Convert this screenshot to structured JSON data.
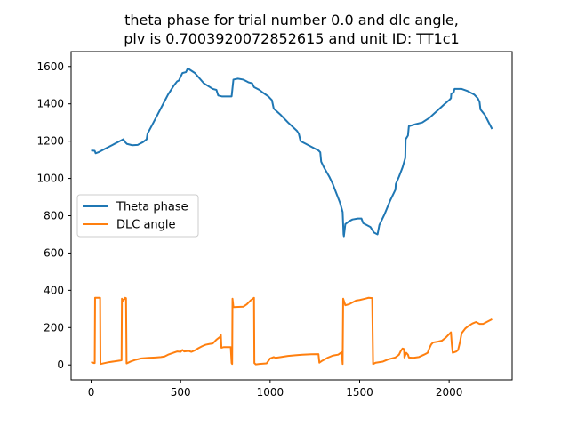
{
  "chart_data": {
    "type": "line",
    "title_lines": [
      "theta phase for trial number 0.0 and dlc angle,",
      "plv is 0.7003920072852615 and unit ID: TT1c1"
    ],
    "xlabel": "",
    "ylabel": "",
    "xlim": [
      -112,
      2352
    ],
    "ylim": [
      -80,
      1680
    ],
    "xticks": [
      0,
      500,
      1000,
      1500,
      2000
    ],
    "yticks": [
      0,
      200,
      400,
      600,
      800,
      1000,
      1200,
      1400,
      1600
    ],
    "grid": false,
    "legend_placement": "center-left",
    "series": [
      {
        "name": "Theta phase",
        "color": "#1f77b4",
        "points": [
          [
            0,
            1150
          ],
          [
            20,
            1148
          ],
          [
            25,
            1135
          ],
          [
            40,
            1140
          ],
          [
            80,
            1160
          ],
          [
            120,
            1180
          ],
          [
            160,
            1200
          ],
          [
            180,
            1210
          ],
          [
            190,
            1195
          ],
          [
            200,
            1185
          ],
          [
            230,
            1178
          ],
          [
            260,
            1180
          ],
          [
            290,
            1195
          ],
          [
            310,
            1210
          ],
          [
            315,
            1240
          ],
          [
            340,
            1285
          ],
          [
            370,
            1340
          ],
          [
            400,
            1395
          ],
          [
            430,
            1450
          ],
          [
            460,
            1495
          ],
          [
            480,
            1520
          ],
          [
            490,
            1525
          ],
          [
            510,
            1565
          ],
          [
            530,
            1570
          ],
          [
            540,
            1590
          ],
          [
            580,
            1565
          ],
          [
            630,
            1510
          ],
          [
            680,
            1480
          ],
          [
            700,
            1475
          ],
          [
            710,
            1445
          ],
          [
            730,
            1440
          ],
          [
            770,
            1440
          ],
          [
            785,
            1440
          ],
          [
            795,
            1530
          ],
          [
            820,
            1535
          ],
          [
            850,
            1530
          ],
          [
            870,
            1520
          ],
          [
            880,
            1515
          ],
          [
            900,
            1510
          ],
          [
            910,
            1490
          ],
          [
            940,
            1475
          ],
          [
            960,
            1460
          ],
          [
            990,
            1440
          ],
          [
            1010,
            1420
          ],
          [
            1020,
            1375
          ],
          [
            1060,
            1340
          ],
          [
            1100,
            1300
          ],
          [
            1150,
            1255
          ],
          [
            1160,
            1240
          ],
          [
            1170,
            1200
          ],
          [
            1200,
            1185
          ],
          [
            1240,
            1165
          ],
          [
            1270,
            1150
          ],
          [
            1280,
            1140
          ],
          [
            1285,
            1090
          ],
          [
            1300,
            1060
          ],
          [
            1330,
            1010
          ],
          [
            1350,
            970
          ],
          [
            1370,
            920
          ],
          [
            1390,
            870
          ],
          [
            1405,
            820
          ],
          [
            1408,
            750
          ],
          [
            1410,
            700
          ],
          [
            1412,
            690
          ],
          [
            1420,
            755
          ],
          [
            1440,
            770
          ],
          [
            1460,
            780
          ],
          [
            1490,
            785
          ],
          [
            1510,
            785
          ],
          [
            1520,
            760
          ],
          [
            1540,
            750
          ],
          [
            1560,
            740
          ],
          [
            1580,
            710
          ],
          [
            1600,
            700
          ],
          [
            1610,
            750
          ],
          [
            1640,
            810
          ],
          [
            1670,
            880
          ],
          [
            1700,
            940
          ],
          [
            1702,
            970
          ],
          [
            1720,
            1010
          ],
          [
            1740,
            1060
          ],
          [
            1755,
            1110
          ],
          [
            1757,
            1210
          ],
          [
            1770,
            1230
          ],
          [
            1775,
            1280
          ],
          [
            1810,
            1290
          ],
          [
            1850,
            1300
          ],
          [
            1890,
            1325
          ],
          [
            1930,
            1360
          ],
          [
            1970,
            1395
          ],
          [
            2000,
            1420
          ],
          [
            2010,
            1430
          ],
          [
            2012,
            1455
          ],
          [
            2025,
            1460
          ],
          [
            2030,
            1480
          ],
          [
            2070,
            1480
          ],
          [
            2100,
            1470
          ],
          [
            2140,
            1450
          ],
          [
            2160,
            1430
          ],
          [
            2170,
            1410
          ],
          [
            2175,
            1370
          ],
          [
            2200,
            1340
          ],
          [
            2240,
            1265
          ]
        ]
      },
      {
        "name": "DLC angle",
        "color": "#ff7f0e",
        "points": [
          [
            0,
            15
          ],
          [
            10,
            12
          ],
          [
            15,
            10
          ],
          [
            20,
            10
          ],
          [
            22,
            360
          ],
          [
            50,
            360
          ],
          [
            52,
            5
          ],
          [
            100,
            15
          ],
          [
            150,
            22
          ],
          [
            170,
            25
          ],
          [
            172,
            355
          ],
          [
            180,
            345
          ],
          [
            190,
            360
          ],
          [
            195,
            358
          ],
          [
            198,
            8
          ],
          [
            220,
            18
          ],
          [
            250,
            28
          ],
          [
            280,
            35
          ],
          [
            320,
            38
          ],
          [
            360,
            40
          ],
          [
            390,
            42
          ],
          [
            410,
            45
          ],
          [
            430,
            55
          ],
          [
            460,
            65
          ],
          [
            480,
            72
          ],
          [
            500,
            70
          ],
          [
            510,
            80
          ],
          [
            520,
            72
          ],
          [
            545,
            75
          ],
          [
            560,
            70
          ],
          [
            580,
            78
          ],
          [
            600,
            90
          ],
          [
            620,
            100
          ],
          [
            640,
            108
          ],
          [
            660,
            112
          ],
          [
            680,
            115
          ],
          [
            700,
            135
          ],
          [
            720,
            150
          ],
          [
            725,
            160
          ],
          [
            728,
            92
          ],
          [
            740,
            95
          ],
          [
            770,
            95
          ],
          [
            780,
            95
          ],
          [
            785,
            10
          ],
          [
            788,
            5
          ],
          [
            790,
            355
          ],
          [
            795,
            310
          ],
          [
            850,
            312
          ],
          [
            870,
            325
          ],
          [
            890,
            345
          ],
          [
            910,
            360
          ],
          [
            912,
            10
          ],
          [
            920,
            3
          ],
          [
            940,
            5
          ],
          [
            980,
            8
          ],
          [
            1000,
            35
          ],
          [
            1020,
            42
          ],
          [
            1030,
            38
          ],
          [
            1060,
            42
          ],
          [
            1100,
            48
          ],
          [
            1140,
            52
          ],
          [
            1180,
            55
          ],
          [
            1230,
            57
          ],
          [
            1270,
            58
          ],
          [
            1275,
            12
          ],
          [
            1290,
            22
          ],
          [
            1320,
            38
          ],
          [
            1350,
            50
          ],
          [
            1380,
            55
          ],
          [
            1400,
            68
          ],
          [
            1405,
            5
          ],
          [
            1408,
            355
          ],
          [
            1420,
            320
          ],
          [
            1440,
            325
          ],
          [
            1460,
            335
          ],
          [
            1480,
            345
          ],
          [
            1500,
            348
          ],
          [
            1530,
            355
          ],
          [
            1550,
            360
          ],
          [
            1570,
            358
          ],
          [
            1575,
            5
          ],
          [
            1590,
            12
          ],
          [
            1630,
            18
          ],
          [
            1660,
            30
          ],
          [
            1700,
            40
          ],
          [
            1720,
            55
          ],
          [
            1730,
            75
          ],
          [
            1740,
            88
          ],
          [
            1748,
            85
          ],
          [
            1750,
            40
          ],
          [
            1760,
            65
          ],
          [
            1770,
            55
          ],
          [
            1775,
            40
          ],
          [
            1800,
            38
          ],
          [
            1830,
            42
          ],
          [
            1860,
            55
          ],
          [
            1880,
            65
          ],
          [
            1890,
            90
          ],
          [
            1900,
            110
          ],
          [
            1910,
            120
          ],
          [
            1940,
            125
          ],
          [
            1960,
            130
          ],
          [
            1980,
            145
          ],
          [
            2000,
            165
          ],
          [
            2010,
            175
          ],
          [
            2015,
            110
          ],
          [
            2020,
            65
          ],
          [
            2040,
            72
          ],
          [
            2050,
            80
          ],
          [
            2060,
            120
          ],
          [
            2070,
            170
          ],
          [
            2090,
            195
          ],
          [
            2110,
            210
          ],
          [
            2130,
            222
          ],
          [
            2150,
            230
          ],
          [
            2170,
            220
          ],
          [
            2190,
            220
          ],
          [
            2210,
            230
          ],
          [
            2240,
            245
          ]
        ]
      }
    ]
  }
}
